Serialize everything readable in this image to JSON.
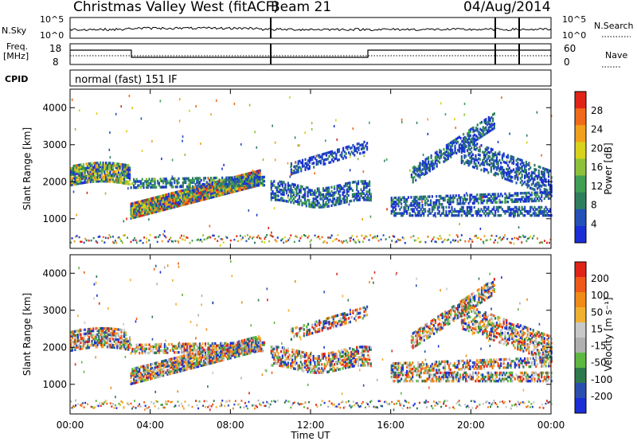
{
  "header": {
    "title": "Christmas Valley West (fitACF)",
    "beam": "Beam 21",
    "date": "04/Aug/2014"
  },
  "top_panels": {
    "nsky_label": "N.Sky",
    "nsky_top": "10^5",
    "nsky_bottom": "10^0",
    "nsearch_label": "N.Search",
    "nsearch_top": "10^5",
    "nsearch_bottom": "10^0",
    "freq_label_1": "Freq.",
    "freq_label_2": "[MHz]",
    "freq_top": "18",
    "freq_bottom": "8",
    "nave_label": "Nave",
    "nave_top": "60",
    "nave_bottom": "0",
    "cpid_label": "CPID",
    "cpid_value": "normal (fast) 151 IF"
  },
  "colors": {
    "power_scale": [
      "#1a2fd6",
      "#2450b8",
      "#2f7f5e",
      "#3f9f55",
      "#8cc23a",
      "#d8d21c",
      "#f0a01c",
      "#f06a1a",
      "#e02418"
    ],
    "velocity_scale": [
      "#1a2fd6",
      "#2a4fb0",
      "#2e7a4c",
      "#5cb840",
      "#b0b0b0",
      "#c8c8c8",
      "#f0b030",
      "#f08a18",
      "#f05a18",
      "#e02418"
    ]
  },
  "chart_data": [
    {
      "type": "heatmap",
      "panel": "power",
      "title": "",
      "xlabel": "Time UT",
      "ylabel": "Slant Range [km]",
      "x_tick_labels": [
        "00:00",
        "04:00",
        "08:00",
        "12:00",
        "16:00",
        "20:00",
        "00:00"
      ],
      "y_tick_labels": [
        "1000",
        "2000",
        "3000",
        "4000"
      ],
      "ylim": [
        200,
        4500
      ],
      "xlim_hours": [
        0,
        24
      ],
      "colorbar_label": "Power [dB]",
      "colorbar_ticks": [
        "4",
        "8",
        "12",
        "16",
        "20",
        "24",
        "28"
      ]
    },
    {
      "type": "heatmap",
      "panel": "velocity",
      "title": "",
      "xlabel": "Time UT",
      "ylabel": "Slant Range [km]",
      "x_tick_labels": [
        "00:00",
        "04:00",
        "08:00",
        "12:00",
        "16:00",
        "20:00",
        "00:00"
      ],
      "y_tick_labels": [
        "1000",
        "2000",
        "3000",
        "4000"
      ],
      "ylim": [
        200,
        4500
      ],
      "xlim_hours": [
        0,
        24
      ],
      "colorbar_label": "Velocity [m s⁻¹]",
      "colorbar_ticks": [
        "200",
        "100",
        "50",
        "15",
        "-15",
        "-50",
        "-100",
        "-200"
      ]
    }
  ]
}
